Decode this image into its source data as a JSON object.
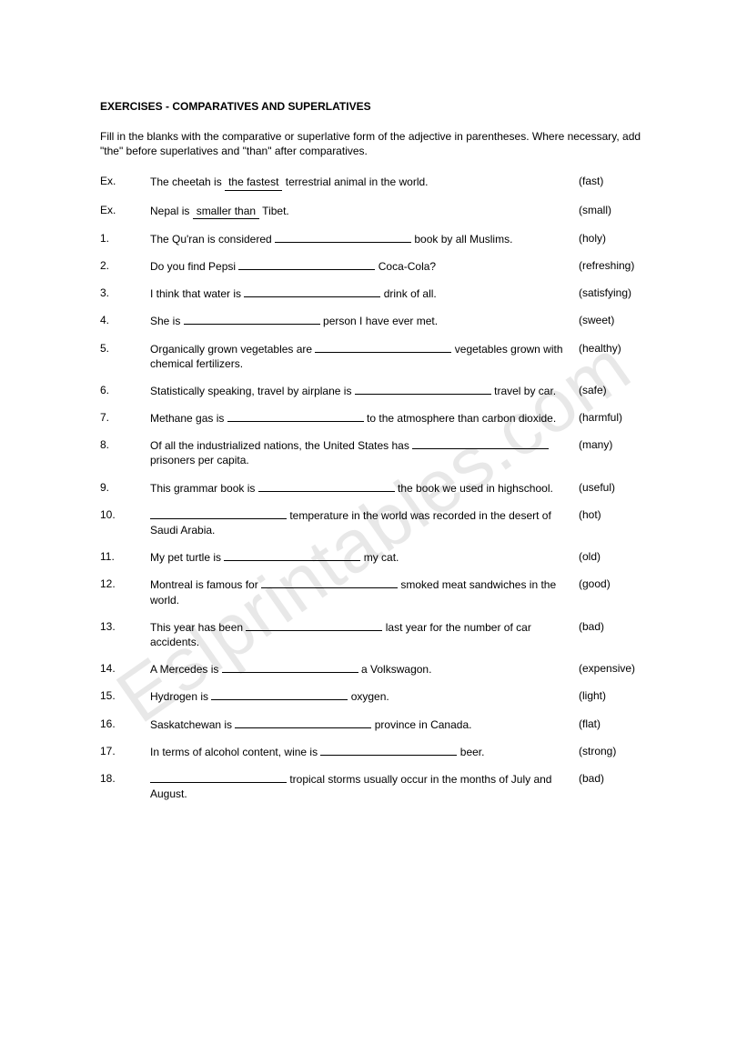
{
  "title": "EXERCISES - COMPARATIVES AND SUPERLATIVES",
  "instructions": "Fill in the blanks with the comparative or superlative form of the adjective in parentheses.  Where necessary, add \"the\" before superlatives and \"than\" after comparatives.",
  "watermark": "Eslprintables.com",
  "examples": [
    {
      "num": "Ex.",
      "pre": "The cheetah is ",
      "answer": "the fastest",
      "post": " terrestrial animal in the world.",
      "adj": "(fast)"
    },
    {
      "num": "Ex.",
      "pre": "Nepal is ",
      "answer": "smaller than",
      "post": "  Tibet.",
      "adj": "(small)"
    }
  ],
  "items": [
    {
      "num": "1.",
      "pre": "The Qu'ran is considered ",
      "post": " book by all Muslims.",
      "adj": "(holy)"
    },
    {
      "num": "2.",
      "pre": "Do you find Pepsi ",
      "post": " Coca-Cola?",
      "adj": "(refreshing)"
    },
    {
      "num": "3.",
      "pre": "I think that water is ",
      "post": " drink of all.",
      "adj": "(satisfying)"
    },
    {
      "num": "4.",
      "pre": "She is ",
      "post": " person I have ever met.",
      "adj": "(sweet)"
    },
    {
      "num": "5.",
      "pre": "Organically grown vegetables are ",
      "post": " vegetables grown with chemical fertilizers.",
      "adj": "(healthy)"
    },
    {
      "num": "6.",
      "pre": "Statistically speaking, travel by airplane is ",
      "post": " travel by car.",
      "adj": "(safe)"
    },
    {
      "num": "7.",
      "pre": "Methane gas is ",
      "post": " to the atmosphere than carbon dioxide.",
      "adj": "(harmful)"
    },
    {
      "num": "8.",
      "pre": "Of all the industrialized nations, the United States has ",
      "post": " prisoners per capita.",
      "adj": "(many)"
    },
    {
      "num": "9.",
      "pre": "This grammar book is ",
      "post": " the book we used in highschool.",
      "adj": "(useful)"
    },
    {
      "num": "10.",
      "pre": "",
      "post": " temperature in the world was recorded in the desert of Saudi Arabia.",
      "adj": "(hot)"
    },
    {
      "num": "11.",
      "pre": "My pet turtle is ",
      "post": " my cat.",
      "adj": "(old)"
    },
    {
      "num": "12.",
      "pre": "Montreal is famous for ",
      "post": " smoked meat sandwiches in the world.",
      "adj": "(good)"
    },
    {
      "num": "13.",
      "pre": "This year has been ",
      "post": " last year for the number of car accidents.",
      "adj": "(bad)"
    },
    {
      "num": "14.",
      "pre": "A Mercedes is ",
      "post": " a Volkswagon.",
      "adj": "(expensive)"
    },
    {
      "num": "15.",
      "pre": "Hydrogen is ",
      "post": " oxygen.",
      "adj": "(light)"
    },
    {
      "num": "16.",
      "pre": "Saskatchewan is ",
      "post": " province in Canada.",
      "adj": "(flat)"
    },
    {
      "num": "17.",
      "pre": "In terms of alcohol content, wine is ",
      "post": " beer.",
      "adj": "(strong)"
    },
    {
      "num": "18.",
      "pre": "",
      "post": " tropical storms usually occur in the months of July and August.",
      "adj": "(bad)"
    }
  ]
}
